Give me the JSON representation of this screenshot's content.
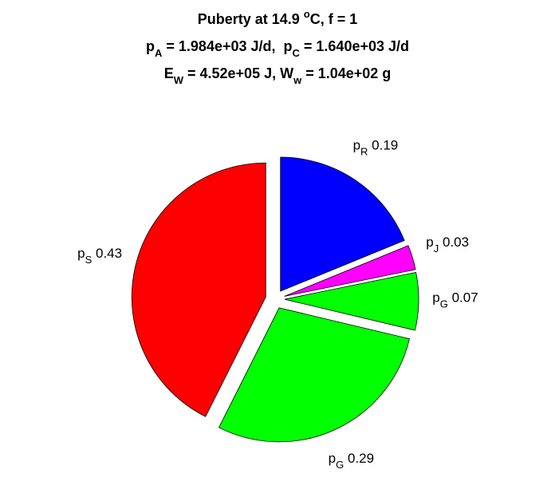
{
  "chart_data": {
    "type": "pie",
    "title": [
      [
        {
          "text": "Puberty at 14.9 "
        },
        {
          "text": "o",
          "shift": "sup"
        },
        {
          "text": "C, f = 1"
        }
      ],
      [
        {
          "text": "p"
        },
        {
          "text": "A",
          "shift": "sub"
        },
        {
          "text": " = 1.984e+03 J/d,  p"
        },
        {
          "text": "C",
          "shift": "sub"
        },
        {
          "text": " = 1.640e+03 J/d"
        }
      ],
      [
        {
          "text": "E"
        },
        {
          "text": "W",
          "shift": "sub"
        },
        {
          "text": " = 4.52e+05 J, W"
        },
        {
          "text": "w",
          "shift": "sub"
        },
        {
          "text": " = 1.04e+02 g"
        }
      ]
    ],
    "labels": [
      {
        "main": "p",
        "sub": "R"
      },
      {
        "main": "p",
        "sub": "J"
      },
      {
        "main": "p",
        "sub": "G"
      },
      {
        "main": "p",
        "sub": "G"
      },
      {
        "main": "p",
        "sub": "S"
      }
    ],
    "values": [
      0.19,
      0.03,
      0.07,
      0.29,
      0.43
    ],
    "colors": [
      "#0000ff",
      "#ff00ff",
      "#00ff00",
      "#00ff00",
      "#ff0000"
    ],
    "exploded": true
  }
}
